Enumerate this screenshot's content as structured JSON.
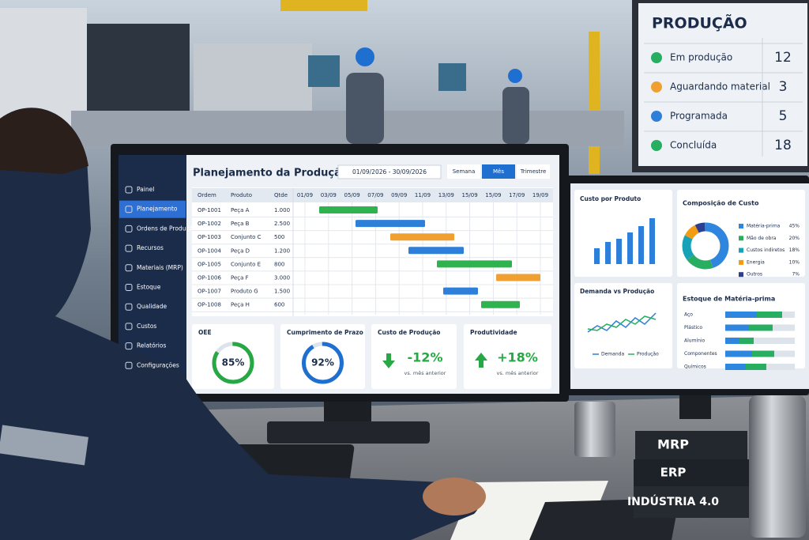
{
  "wall_display": {
    "title": "PRODUÇÃO",
    "rows": [
      {
        "label": "Em produção",
        "count": 12,
        "color": "#27ae60"
      },
      {
        "label": "Aguardando material",
        "count": 3,
        "color": "#f0a030"
      },
      {
        "label": "Programada",
        "count": 5,
        "color": "#2e7fd9"
      },
      {
        "label": "Concluída",
        "count": 18,
        "color": "#27ae60"
      }
    ]
  },
  "dashboard": {
    "title": "Planejamento da Produção",
    "date_range": "01/09/2026 - 30/09/2026",
    "views": [
      "Semana",
      "Mês",
      "Trimestre"
    ],
    "active_view": 1,
    "menu": [
      "Painel",
      "Planejamento",
      "Ordens de Produção",
      "Recursos",
      "Materiais (MRP)",
      "Estoque",
      "Qualidade",
      "Custos",
      "Relatórios",
      "Configurações"
    ],
    "active_menu": 1,
    "table": {
      "headers": [
        "Ordem",
        "Produto",
        "Qtde"
      ],
      "rows": [
        [
          "OP-1001",
          "Peça A",
          "1.000"
        ],
        [
          "OP-1002",
          "Peça B",
          "2.500"
        ],
        [
          "OP-1003",
          "Conjunto C",
          "500"
        ],
        [
          "OP-1004",
          "Peça D",
          "1.200"
        ],
        [
          "OP-1005",
          "Conjunto E",
          "800"
        ],
        [
          "OP-1006",
          "Peça F",
          "3.000"
        ],
        [
          "OP-1007",
          "Produto G",
          "1.500"
        ],
        [
          "OP-1008",
          "Peça H",
          "600"
        ]
      ]
    },
    "timeline": [
      "01/09",
      "03/09",
      "05/09",
      "07/09",
      "09/09",
      "11/09",
      "13/09",
      "15/09",
      "15/09",
      "17/09",
      "19/09"
    ],
    "rings": [
      {
        "title": "OEE",
        "value": 85,
        "label": "85%",
        "color": "#27a844"
      },
      {
        "title": "Cumprimento de Prazo",
        "value": 92,
        "label": "92%",
        "color": "#1f6fd0"
      }
    ],
    "deltas": [
      {
        "title": "Custo de Produção",
        "label": "-12%",
        "note": "vs. mês anterior"
      },
      {
        "title": "Produtividade",
        "label": "+18%",
        "note": "vs. mês anterior"
      }
    ]
  },
  "side_monitor": {
    "cost_by_product": "Custo por Produto",
    "composition": {
      "title": "Composição de Custo",
      "items": [
        {
          "name": "Matéria-prima",
          "value": 45,
          "label": "45%",
          "color": "#2e86de"
        },
        {
          "name": "Mão de obra",
          "value": 20,
          "label": "20%",
          "color": "#27ae60"
        },
        {
          "name": "Custos indiretos",
          "value": 18,
          "label": "18%",
          "color": "#17a2b8"
        },
        {
          "name": "Energia",
          "value": 10,
          "label": "10%",
          "color": "#f39c12"
        },
        {
          "name": "Outros",
          "value": 7,
          "label": "7%",
          "color": "#2c3e90"
        }
      ]
    },
    "demand": {
      "title": "Demanda vs Produção",
      "legend": [
        "Demanda",
        "Produção"
      ]
    },
    "stock": {
      "title": "Estoque de Matéria-prima",
      "items": [
        "Aço",
        "Plástico",
        "Alumínio",
        "Componentes",
        "Químicos"
      ]
    }
  },
  "desk_books": [
    "MRP",
    "ERP",
    "INDÚSTRIA 4.0"
  ]
}
